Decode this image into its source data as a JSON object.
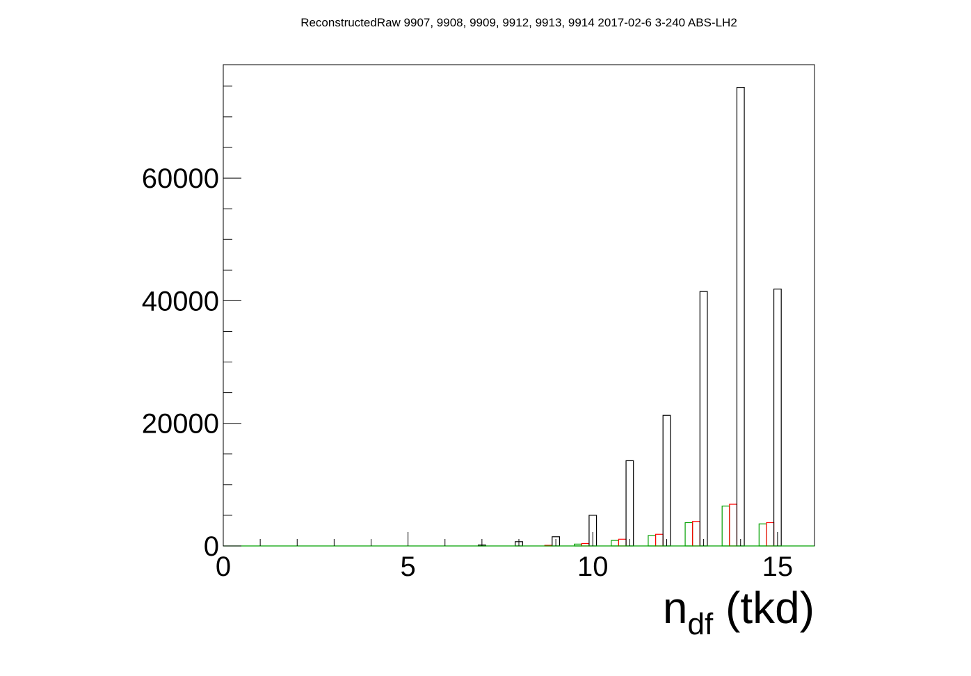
{
  "chart_data": {
    "type": "bar",
    "title": "ReconstructedRaw 9907, 9908, 9909, 9912, 9913, 9914 2017-02-6 3-240 ABS-LH2",
    "xlabel": {
      "main": "n",
      "sub": "df",
      "suffix": " (tkd)"
    },
    "ylabel": "",
    "xlim": [
      0,
      16
    ],
    "ylim": [
      0,
      78500
    ],
    "grid": false,
    "x_ticks": [
      0,
      5,
      10,
      15
    ],
    "x_tick_labels": [
      "0",
      "5",
      "10",
      "15"
    ],
    "y_ticks": [
      0,
      20000,
      40000,
      60000
    ],
    "y_tick_labels": [
      "0",
      "20000",
      "40000",
      "60000"
    ],
    "x": [
      7,
      8,
      9,
      10,
      11,
      12,
      13,
      14,
      15
    ],
    "series": [
      {
        "color": "#000000",
        "values": [
          150,
          700,
          1500,
          5000,
          13900,
          21300,
          41500,
          74800,
          41900
        ]
      },
      {
        "color": "#ff0000",
        "values": [
          0,
          0,
          100,
          400,
          1100,
          1900,
          4000,
          6800,
          3800
        ]
      },
      {
        "color": "#00a000",
        "values": [
          0,
          0,
          0,
          300,
          900,
          1700,
          3800,
          6500,
          3600
        ]
      }
    ]
  }
}
